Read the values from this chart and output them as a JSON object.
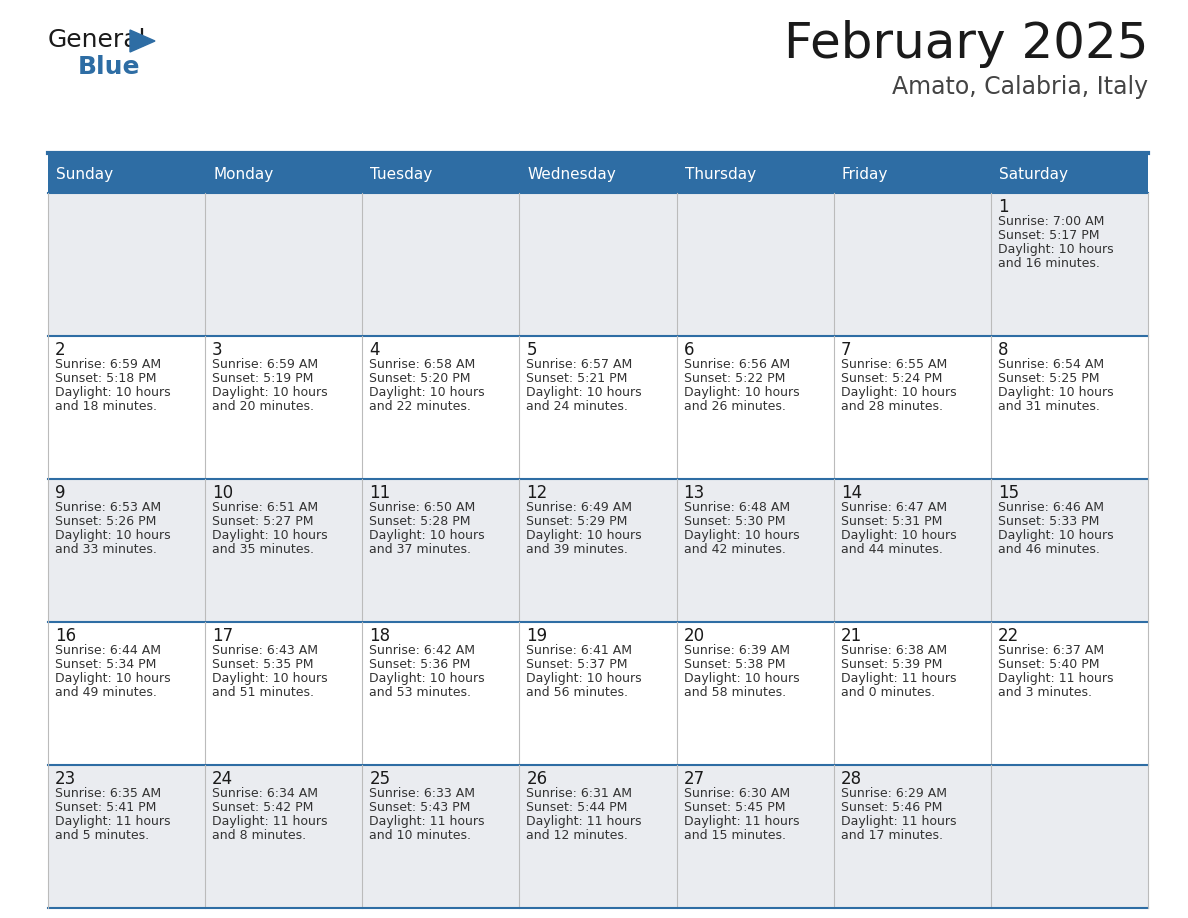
{
  "title": "February 2025",
  "subtitle": "Amato, Calabria, Italy",
  "days_of_week": [
    "Sunday",
    "Monday",
    "Tuesday",
    "Wednesday",
    "Thursday",
    "Friday",
    "Saturday"
  ],
  "header_bg": "#2E6DA4",
  "header_text": "#FFFFFF",
  "row_bg_odd": "#EAECF0",
  "row_bg_even": "#FFFFFF",
  "cell_border_color": "#2E6DA4",
  "vert_line_color": "#BBBBBB",
  "day_num_color": "#1a1a1a",
  "info_color": "#333333",
  "title_color": "#1a1a1a",
  "subtitle_color": "#444444",
  "logo_general_color": "#1a1a1a",
  "logo_blue_color": "#2E6DA4",
  "logo_triangle_color": "#2E6DA4",
  "weeks": [
    [
      null,
      null,
      null,
      null,
      null,
      null,
      {
        "day": 1,
        "sunrise": "7:00 AM",
        "sunset": "5:17 PM",
        "daylight": "10 hours and 16 minutes."
      }
    ],
    [
      {
        "day": 2,
        "sunrise": "6:59 AM",
        "sunset": "5:18 PM",
        "daylight": "10 hours and 18 minutes."
      },
      {
        "day": 3,
        "sunrise": "6:59 AM",
        "sunset": "5:19 PM",
        "daylight": "10 hours and 20 minutes."
      },
      {
        "day": 4,
        "sunrise": "6:58 AM",
        "sunset": "5:20 PM",
        "daylight": "10 hours and 22 minutes."
      },
      {
        "day": 5,
        "sunrise": "6:57 AM",
        "sunset": "5:21 PM",
        "daylight": "10 hours and 24 minutes."
      },
      {
        "day": 6,
        "sunrise": "6:56 AM",
        "sunset": "5:22 PM",
        "daylight": "10 hours and 26 minutes."
      },
      {
        "day": 7,
        "sunrise": "6:55 AM",
        "sunset": "5:24 PM",
        "daylight": "10 hours and 28 minutes."
      },
      {
        "day": 8,
        "sunrise": "6:54 AM",
        "sunset": "5:25 PM",
        "daylight": "10 hours and 31 minutes."
      }
    ],
    [
      {
        "day": 9,
        "sunrise": "6:53 AM",
        "sunset": "5:26 PM",
        "daylight": "10 hours and 33 minutes."
      },
      {
        "day": 10,
        "sunrise": "6:51 AM",
        "sunset": "5:27 PM",
        "daylight": "10 hours and 35 minutes."
      },
      {
        "day": 11,
        "sunrise": "6:50 AM",
        "sunset": "5:28 PM",
        "daylight": "10 hours and 37 minutes."
      },
      {
        "day": 12,
        "sunrise": "6:49 AM",
        "sunset": "5:29 PM",
        "daylight": "10 hours and 39 minutes."
      },
      {
        "day": 13,
        "sunrise": "6:48 AM",
        "sunset": "5:30 PM",
        "daylight": "10 hours and 42 minutes."
      },
      {
        "day": 14,
        "sunrise": "6:47 AM",
        "sunset": "5:31 PM",
        "daylight": "10 hours and 44 minutes."
      },
      {
        "day": 15,
        "sunrise": "6:46 AM",
        "sunset": "5:33 PM",
        "daylight": "10 hours and 46 minutes."
      }
    ],
    [
      {
        "day": 16,
        "sunrise": "6:44 AM",
        "sunset": "5:34 PM",
        "daylight": "10 hours and 49 minutes."
      },
      {
        "day": 17,
        "sunrise": "6:43 AM",
        "sunset": "5:35 PM",
        "daylight": "10 hours and 51 minutes."
      },
      {
        "day": 18,
        "sunrise": "6:42 AM",
        "sunset": "5:36 PM",
        "daylight": "10 hours and 53 minutes."
      },
      {
        "day": 19,
        "sunrise": "6:41 AM",
        "sunset": "5:37 PM",
        "daylight": "10 hours and 56 minutes."
      },
      {
        "day": 20,
        "sunrise": "6:39 AM",
        "sunset": "5:38 PM",
        "daylight": "10 hours and 58 minutes."
      },
      {
        "day": 21,
        "sunrise": "6:38 AM",
        "sunset": "5:39 PM",
        "daylight": "11 hours and 0 minutes."
      },
      {
        "day": 22,
        "sunrise": "6:37 AM",
        "sunset": "5:40 PM",
        "daylight": "11 hours and 3 minutes."
      }
    ],
    [
      {
        "day": 23,
        "sunrise": "6:35 AM",
        "sunset": "5:41 PM",
        "daylight": "11 hours and 5 minutes."
      },
      {
        "day": 24,
        "sunrise": "6:34 AM",
        "sunset": "5:42 PM",
        "daylight": "11 hours and 8 minutes."
      },
      {
        "day": 25,
        "sunrise": "6:33 AM",
        "sunset": "5:43 PM",
        "daylight": "11 hours and 10 minutes."
      },
      {
        "day": 26,
        "sunrise": "6:31 AM",
        "sunset": "5:44 PM",
        "daylight": "11 hours and 12 minutes."
      },
      {
        "day": 27,
        "sunrise": "6:30 AM",
        "sunset": "5:45 PM",
        "daylight": "11 hours and 15 minutes."
      },
      {
        "day": 28,
        "sunrise": "6:29 AM",
        "sunset": "5:46 PM",
        "daylight": "11 hours and 17 minutes."
      },
      null
    ]
  ]
}
